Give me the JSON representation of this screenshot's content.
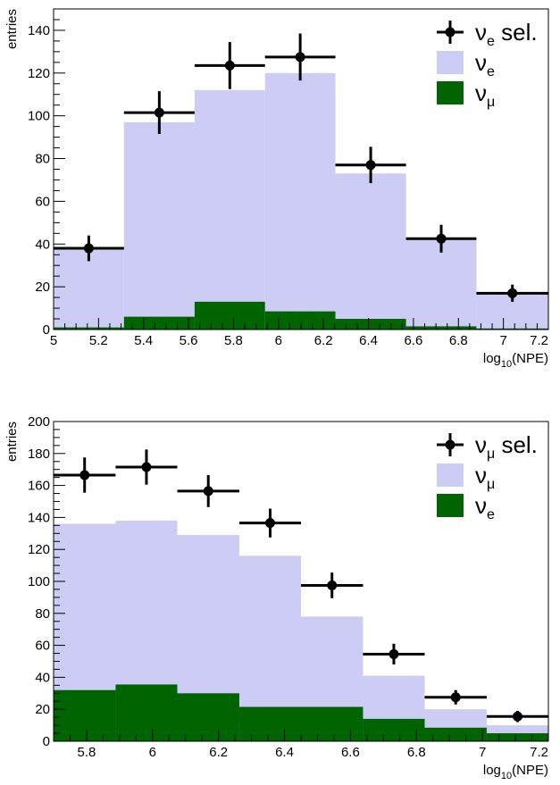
{
  "chart_data": [
    {
      "type": "histogram",
      "ylabel": "entries",
      "xlabel": {
        "pre": "log",
        "sub": "10",
        "post": "(NPE)"
      },
      "xlim": [
        5.0,
        7.2
      ],
      "ylim": [
        0,
        150
      ],
      "xticks": [
        5,
        5.2,
        5.4,
        5.6,
        5.8,
        6,
        6.2,
        6.4,
        6.6,
        6.8,
        7,
        7.2
      ],
      "xtick_labels": [
        "5",
        "5.2",
        "5.4",
        "5.6",
        "5.8",
        "6",
        "6.2",
        "6.4",
        "6.6",
        "6.8",
        "7",
        "7.2"
      ],
      "yticks": [
        0,
        20,
        40,
        60,
        80,
        100,
        120,
        140
      ],
      "ytick_labels": [
        "0",
        "20",
        "40",
        "60",
        "80",
        "100",
        "120",
        "140"
      ],
      "bin_edges": [
        5.0,
        5.313,
        5.627,
        5.94,
        6.253,
        6.567,
        6.88,
        7.2
      ],
      "legend_position": "top-right",
      "legend": [
        {
          "key": "points",
          "base": "ν",
          "sub": "e",
          "suffix": " sel."
        },
        {
          "key": "signal",
          "base": "ν",
          "sub": "e",
          "suffix": ""
        },
        {
          "key": "background",
          "base": "ν",
          "sub": "μ",
          "suffix": ""
        }
      ],
      "signal": {
        "color": "#ccccf5",
        "values": [
          38,
          97,
          112,
          120,
          73,
          42,
          17
        ]
      },
      "background": {
        "color": "#006400",
        "values": [
          1,
          6,
          13,
          8.5,
          5,
          1.5,
          0.5
        ]
      },
      "points": {
        "values": [
          38,
          101.5,
          123.5,
          127.5,
          77,
          42.5,
          17
        ],
        "errors": [
          6,
          10,
          11,
          11,
          8.5,
          6.5,
          4
        ]
      }
    },
    {
      "type": "histogram",
      "ylabel": "entries",
      "xlabel": {
        "pre": "log",
        "sub": "10",
        "post": "(NPE)"
      },
      "xlim": [
        5.7,
        7.2
      ],
      "ylim": [
        0,
        200
      ],
      "xticks": [
        5.8,
        6,
        6.2,
        6.4,
        6.6,
        6.8,
        7,
        7.2
      ],
      "xtick_labels": [
        "5.8",
        "6",
        "6.2",
        "6.4",
        "6.6",
        "6.8",
        "7",
        "7.2"
      ],
      "yticks": [
        0,
        20,
        40,
        60,
        80,
        100,
        120,
        140,
        160,
        180,
        200
      ],
      "ytick_labels": [
        "0",
        "20",
        "40",
        "60",
        "80",
        "100",
        "120",
        "140",
        "160",
        "180",
        "200"
      ],
      "bin_edges": [
        5.7,
        5.888,
        6.075,
        6.263,
        6.45,
        6.638,
        6.825,
        7.013,
        7.2
      ],
      "legend_position": "top-right",
      "legend": [
        {
          "key": "points",
          "base": "ν",
          "sub": "μ",
          "suffix": " sel."
        },
        {
          "key": "signal",
          "base": "ν",
          "sub": "μ",
          "suffix": ""
        },
        {
          "key": "background",
          "base": "ν",
          "sub": "e",
          "suffix": ""
        }
      ],
      "signal": {
        "color": "#ccccf5",
        "values": [
          136,
          138,
          129,
          116,
          78,
          41,
          20,
          10
        ]
      },
      "background": {
        "color": "#006400",
        "values": [
          32,
          35.5,
          30,
          21.5,
          21.5,
          14,
          8.5,
          5
        ]
      },
      "points": {
        "values": [
          166.5,
          171.5,
          156.5,
          136.5,
          97.5,
          54.5,
          27.5,
          15.5
        ],
        "errors": [
          11,
          11,
          10,
          9,
          8,
          6.5,
          4.5,
          3.5
        ]
      }
    }
  ]
}
